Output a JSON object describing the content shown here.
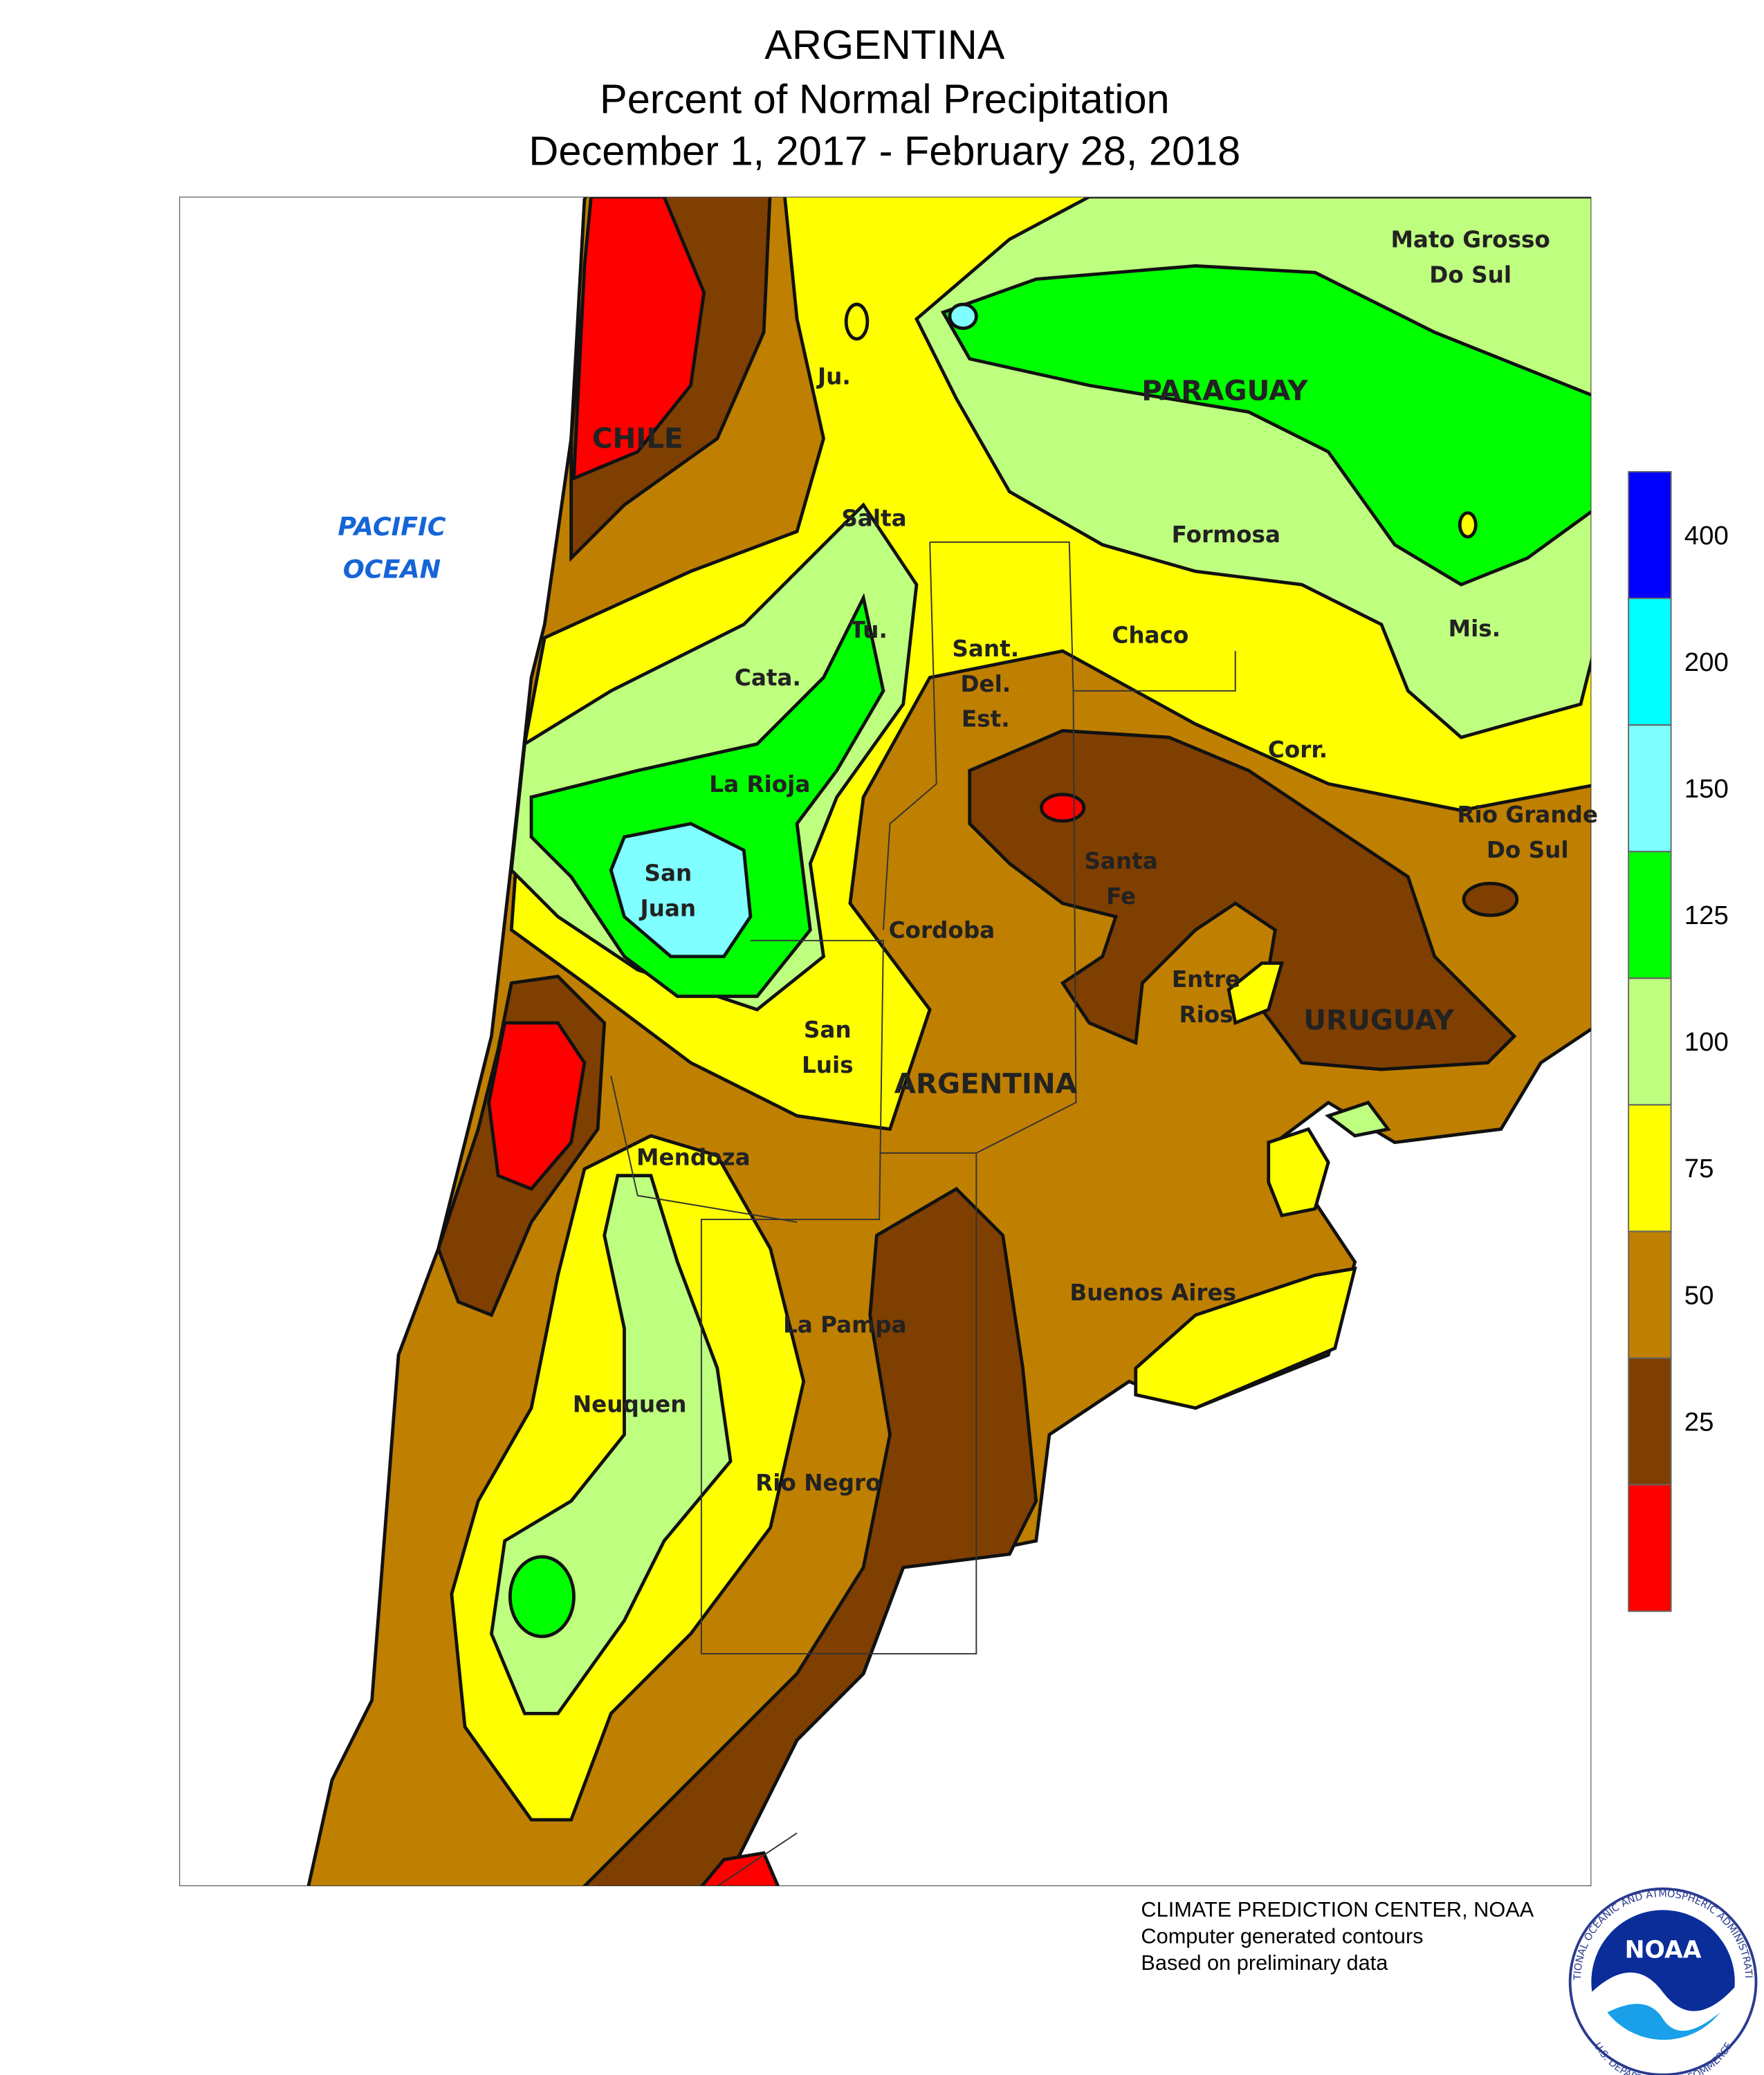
{
  "header": {
    "title": "ARGENTINA",
    "subtitle": "Percent of Normal Precipitation",
    "period": "December 1, 2017 - February 28, 2018"
  },
  "map": {
    "ocean": [
      "PACIFIC",
      "OCEAN"
    ],
    "countries": [
      [
        "CHILE"
      ],
      [
        "PARAGUAY"
      ],
      [
        "URUGUAY"
      ],
      [
        "ARGENTINA"
      ]
    ],
    "regions": [
      [
        "Mato Grosso",
        "Do Sul"
      ],
      [
        "Ju."
      ],
      [
        "Salta"
      ],
      [
        "Formosa"
      ],
      [
        "Tu."
      ],
      [
        "Chaco"
      ],
      [
        "Mis."
      ],
      [
        "Sant.",
        "Del.",
        "Est."
      ],
      [
        "Cata."
      ],
      [
        "Corr."
      ],
      [
        "La Rioja"
      ],
      [
        "Rio Grande",
        "Do Sul"
      ],
      [
        "Santa",
        "Fe"
      ],
      [
        "San",
        "Juan"
      ],
      [
        "Cordoba"
      ],
      [
        "Entre",
        "Rios"
      ],
      [
        "San",
        "Luis"
      ],
      [
        "Mendoza"
      ],
      [
        "Buenos Aires"
      ],
      [
        "La Pampa"
      ],
      [
        "Neuquen"
      ],
      [
        "Rio Negro"
      ]
    ]
  },
  "legend": {
    "ticks": [
      25,
      50,
      75,
      100,
      125,
      150,
      200,
      400
    ],
    "colors": [
      "#ff0000",
      "#7f3f00",
      "#bf7f00",
      "#ffff00",
      "#bfff7f",
      "#00ff00",
      "#7fffff",
      "#00ffff",
      "#0000ff"
    ]
  },
  "footer": [
    "CLIMATE PREDICTION CENTER, NOAA",
    "Computer generated contours",
    "Based on preliminary data"
  ],
  "logo": {
    "text": "NOAA",
    "ring_top": "NATIONAL OCEANIC AND ATMOSPHERIC ADMINISTRATION",
    "ring_bottom": "U.S. DEPARTMENT OF COMMERCE"
  }
}
